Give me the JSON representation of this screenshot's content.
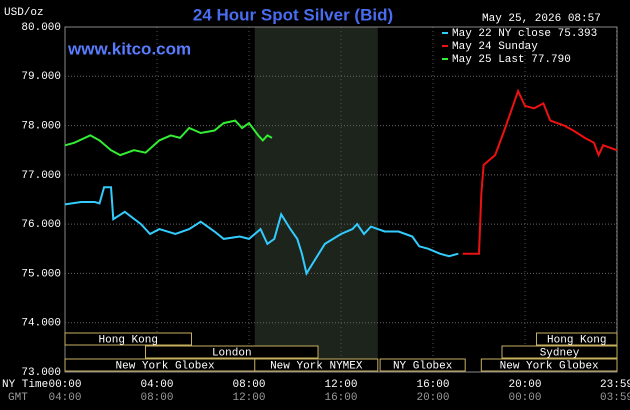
{
  "chart_data": {
    "type": "line",
    "title": "24 Hour Spot Silver (Bid)",
    "y_label": "USD/oz",
    "source": "www.kitco.com",
    "timestamp": "May 25, 2026 08:57",
    "x_label_primary": "NY Time",
    "x_label_secondary": "GMT",
    "xlim": [
      0,
      24
    ],
    "ylim": [
      73,
      80
    ],
    "grid": true,
    "yticks": [
      {
        "value": 73,
        "label": "73.000"
      },
      {
        "value": 74,
        "label": "74.000"
      },
      {
        "value": 75,
        "label": "75.000"
      },
      {
        "value": 76,
        "label": "76.000"
      },
      {
        "value": 77,
        "label": "77.000"
      },
      {
        "value": 78,
        "label": "78.000"
      },
      {
        "value": 79,
        "label": "79.000"
      },
      {
        "value": 80,
        "label": "80.000"
      }
    ],
    "xticks": [
      {
        "value": 0,
        "label": "00:00"
      },
      {
        "value": 4,
        "label": "04:00"
      },
      {
        "value": 8,
        "label": "08:00"
      },
      {
        "value": 12,
        "label": "12:00"
      },
      {
        "value": 16,
        "label": "16:00"
      },
      {
        "value": 20,
        "label": "20:00"
      },
      {
        "value": 23.98,
        "label": "23:59"
      }
    ],
    "gmt_labels": [
      "04:00",
      "08:00",
      "12:00",
      "16:00",
      "20:00",
      "00:00",
      "03:59"
    ],
    "series": [
      {
        "name": "May 22 NY close 75.393",
        "color": "#33ccff",
        "x": [
          0,
          0.7,
          1.3,
          1.5,
          1.7,
          2.0,
          2.1,
          2.6,
          3.3,
          3.7,
          4.1,
          4.8,
          5.4,
          5.9,
          6.5,
          6.9,
          7.6,
          8.0,
          8.5,
          8.8,
          9.1,
          9.4,
          9.8,
          10.1,
          10.3,
          10.5,
          10.9,
          11.3,
          12.0,
          12.5,
          12.7,
          13.0,
          13.3,
          13.9,
          14.5,
          15.1,
          15.4,
          15.8,
          16.3,
          16.7,
          17.1
        ],
        "values": [
          76.4,
          76.45,
          76.45,
          76.42,
          76.75,
          76.75,
          76.1,
          76.25,
          76.0,
          75.8,
          75.9,
          75.8,
          75.9,
          76.05,
          75.85,
          75.7,
          75.75,
          75.7,
          75.9,
          75.6,
          75.7,
          76.2,
          75.9,
          75.7,
          75.4,
          75.0,
          75.3,
          75.6,
          75.8,
          75.9,
          76.0,
          75.8,
          75.95,
          75.85,
          75.85,
          75.75,
          75.55,
          75.5,
          75.4,
          75.35,
          75.4
        ]
      },
      {
        "name": "May 24 Sunday",
        "color": "#ee1111",
        "x": [
          17.3,
          18.0,
          18.1,
          18.2,
          18.7,
          19.1,
          19.4,
          19.7,
          20.0,
          20.4,
          20.8,
          21.1,
          21.7,
          22.1,
          22.6,
          23.0,
          23.2,
          23.4,
          24.0
        ],
        "values": [
          75.4,
          75.4,
          76.6,
          77.2,
          77.4,
          77.9,
          78.3,
          78.7,
          78.4,
          78.35,
          78.45,
          78.1,
          78.0,
          77.9,
          77.75,
          77.65,
          77.4,
          77.6,
          77.5
        ]
      },
      {
        "name": "May 25 Last 77.790",
        "color": "#33ee33",
        "x": [
          0,
          0.4,
          1.1,
          1.5,
          2.0,
          2.4,
          3.0,
          3.5,
          4.1,
          4.6,
          5.0,
          5.4,
          5.9,
          6.5,
          6.9,
          7.4,
          7.7,
          8.0,
          8.4,
          8.6,
          8.8,
          9.0
        ],
        "values": [
          77.6,
          77.65,
          77.8,
          77.7,
          77.5,
          77.4,
          77.5,
          77.45,
          77.7,
          77.8,
          77.75,
          77.95,
          77.85,
          77.9,
          78.05,
          78.1,
          77.95,
          78.05,
          77.8,
          77.7,
          77.8,
          77.75
        ]
      }
    ],
    "sessions": [
      {
        "label": "Hong Kong",
        "start": 0,
        "end": 5.5
      },
      {
        "label": "London",
        "start": 3.5,
        "end": 11
      },
      {
        "label": "New York Globex",
        "start": 0,
        "end": 8.7
      },
      {
        "label": "New York NYMEX",
        "start": 8.25,
        "end": 13.6
      },
      {
        "label": "NY Globex",
        "start": 13.7,
        "end": 17.4
      },
      {
        "label": "Hong Kong",
        "start": 20.5,
        "end": 24
      },
      {
        "label": "Sydney",
        "start": 19,
        "end": 24
      },
      {
        "label": "New York Globex",
        "start": 18.1,
        "end": 24
      }
    ]
  }
}
